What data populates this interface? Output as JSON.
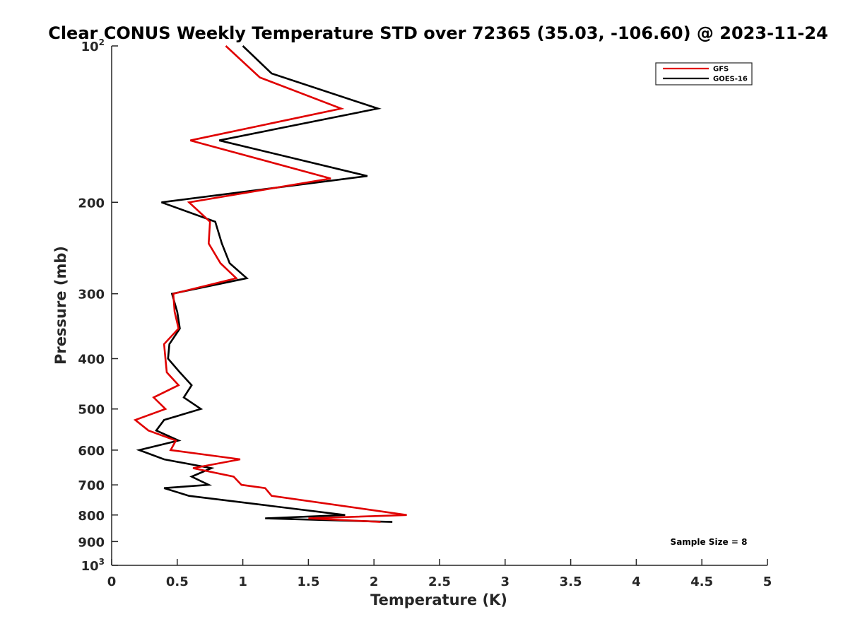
{
  "chart_data": {
    "type": "line",
    "title": "Clear CONUS Weekly Temperature STD over 72365 (35.03, -106.60) @ 2023-11-24",
    "xlabel": "Temperature (K)",
    "ylabel": "Pressure (mb)",
    "xlim": [
      0,
      5
    ],
    "ylim": [
      100,
      1000
    ],
    "y_scale": "log",
    "y_reversed": true,
    "x_ticks": [
      "0",
      "0.5",
      "1",
      "1.5",
      "2",
      "2.5",
      "3",
      "3.5",
      "4",
      "4.5",
      "5"
    ],
    "y_ticks": [
      {
        "value": 100,
        "base": "10",
        "exp": "2"
      },
      {
        "value": 200,
        "label": "200"
      },
      {
        "value": 300,
        "label": "300"
      },
      {
        "value": 400,
        "label": "400"
      },
      {
        "value": 500,
        "label": "500"
      },
      {
        "value": 600,
        "label": "600"
      },
      {
        "value": 700,
        "label": "700"
      },
      {
        "value": 800,
        "label": "800"
      },
      {
        "value": 900,
        "label": "900"
      },
      {
        "value": 1000,
        "base": "10",
        "exp": "3"
      }
    ],
    "grid": false,
    "legend_position": "top-right",
    "annotation": "Sample Size = 8",
    "series": [
      {
        "name": "GFS",
        "color": "#e00000",
        "points": [
          {
            "x": 0.87,
            "y": 100
          },
          {
            "x": 1.13,
            "y": 115
          },
          {
            "x": 1.75,
            "y": 132
          },
          {
            "x": 0.6,
            "y": 152
          },
          {
            "x": 1.67,
            "y": 180
          },
          {
            "x": 0.59,
            "y": 200
          },
          {
            "x": 0.75,
            "y": 218
          },
          {
            "x": 0.74,
            "y": 240
          },
          {
            "x": 0.83,
            "y": 262
          },
          {
            "x": 0.95,
            "y": 280
          },
          {
            "x": 0.47,
            "y": 300
          },
          {
            "x": 0.48,
            "y": 325
          },
          {
            "x": 0.51,
            "y": 350
          },
          {
            "x": 0.4,
            "y": 375
          },
          {
            "x": 0.41,
            "y": 400
          },
          {
            "x": 0.42,
            "y": 425
          },
          {
            "x": 0.51,
            "y": 450
          },
          {
            "x": 0.32,
            "y": 475
          },
          {
            "x": 0.41,
            "y": 500
          },
          {
            "x": 0.18,
            "y": 525
          },
          {
            "x": 0.28,
            "y": 550
          },
          {
            "x": 0.49,
            "y": 575
          },
          {
            "x": 0.45,
            "y": 600
          },
          {
            "x": 0.98,
            "y": 625
          },
          {
            "x": 0.62,
            "y": 650
          },
          {
            "x": 0.93,
            "y": 675
          },
          {
            "x": 0.99,
            "y": 700
          },
          {
            "x": 1.17,
            "y": 710
          },
          {
            "x": 1.22,
            "y": 735
          },
          {
            "x": 2.25,
            "y": 800
          },
          {
            "x": 1.5,
            "y": 812
          },
          {
            "x": 2.05,
            "y": 825
          }
        ]
      },
      {
        "name": "GOES-16",
        "color": "#000000",
        "points": [
          {
            "x": 1.0,
            "y": 100
          },
          {
            "x": 1.22,
            "y": 113
          },
          {
            "x": 2.03,
            "y": 132
          },
          {
            "x": 0.82,
            "y": 152
          },
          {
            "x": 1.95,
            "y": 178
          },
          {
            "x": 0.38,
            "y": 200
          },
          {
            "x": 0.79,
            "y": 218
          },
          {
            "x": 0.84,
            "y": 240
          },
          {
            "x": 0.9,
            "y": 262
          },
          {
            "x": 1.03,
            "y": 280
          },
          {
            "x": 0.46,
            "y": 300
          },
          {
            "x": 0.5,
            "y": 325
          },
          {
            "x": 0.52,
            "y": 350
          },
          {
            "x": 0.44,
            "y": 375
          },
          {
            "x": 0.43,
            "y": 400
          },
          {
            "x": 0.52,
            "y": 425
          },
          {
            "x": 0.61,
            "y": 450
          },
          {
            "x": 0.55,
            "y": 475
          },
          {
            "x": 0.68,
            "y": 500
          },
          {
            "x": 0.4,
            "y": 525
          },
          {
            "x": 0.34,
            "y": 550
          },
          {
            "x": 0.51,
            "y": 575
          },
          {
            "x": 0.21,
            "y": 600
          },
          {
            "x": 0.4,
            "y": 625
          },
          {
            "x": 0.76,
            "y": 650
          },
          {
            "x": 0.61,
            "y": 675
          },
          {
            "x": 0.74,
            "y": 700
          },
          {
            "x": 0.4,
            "y": 710
          },
          {
            "x": 0.59,
            "y": 735
          },
          {
            "x": 1.78,
            "y": 800
          },
          {
            "x": 1.17,
            "y": 812
          },
          {
            "x": 2.14,
            "y": 825
          }
        ]
      }
    ]
  }
}
